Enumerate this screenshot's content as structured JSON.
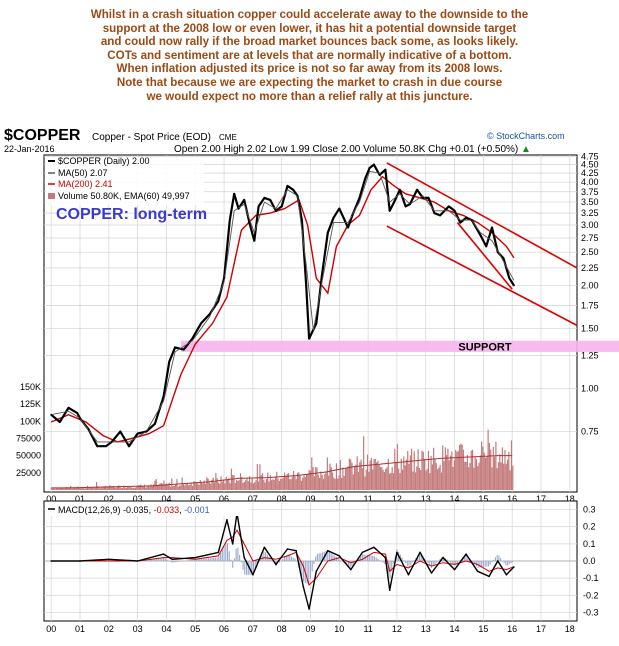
{
  "commentary": [
    "Whilst in a crash situation copper could accelerate away to the downside to the",
    "support at the 2008 low or even lower, it has hit a potential downside target",
    "and could now rally if the broad market bounces back some, as looks likely.",
    "COTs and sentiment are at levels that are normally indicative of a bottom.",
    "When inflation adjusted its price is not so far away from its 2008 lows.",
    "Note that because we are expecting the market to crash in due course",
    "we would expect no more than a relief rally at this juncture."
  ],
  "colors": {
    "commentary": "#9b4a14",
    "price": "#000000",
    "ma50": "#000000",
    "ma200": "#cc0000",
    "volume": "#c47a7a",
    "trend_channel": "#dd0000",
    "support_band": "#f7b4ee",
    "overlay_title": "#3a3acc",
    "stockcharts": "#1a4d99"
  },
  "chart_data": [
    {
      "type": "line",
      "header": {
        "symbol": "$COPPER",
        "description": "Copper - Spot Price (EOD)",
        "exchange": "CME",
        "date": "22-Jan-2016",
        "open_label": "Open",
        "open": "2.00",
        "high_label": "High",
        "high": "2.02",
        "low_label": "Low",
        "low": "1.99",
        "close_label": "Close",
        "close": "2.00",
        "volume_label": "Volume",
        "volume": "50.8K",
        "chg_label": "Chg",
        "chg": "+0.01 (+0.50%)",
        "watermark": "© StockCharts.com",
        "up_arrow": "▲"
      },
      "legend": [
        "$COPPER (Daily) 2.00",
        "MA(50) 2.07",
        "MA(200) 2.41",
        "Volume 50.80K, EMA(60) 49,997"
      ],
      "overlay_title": "COPPER: long-term",
      "support_label": "SUPPORT",
      "support_range": [
        1.28,
        1.38
      ],
      "y_scale": "log",
      "ylim": [
        0.5,
        4.8
      ],
      "y_ticks": [
        4.75,
        4.5,
        4.25,
        4.0,
        3.75,
        3.5,
        3.25,
        3.0,
        2.75,
        2.5,
        2.25,
        2.0,
        1.75,
        1.5,
        1.25,
        1.0,
        0.75
      ],
      "y_tick_labels": [
        "4.75",
        "4.50",
        "4.25",
        "4.00",
        "3.75",
        "3.50",
        "3.25",
        "3.00",
        "2.75",
        "2.50",
        "2.25",
        "2.00",
        "1.75",
        "1.50",
        "1.25",
        "1.00",
        "0.75"
      ],
      "xlim": [
        1999.75,
        2018.25
      ],
      "x_ticks": [
        2000,
        2001,
        2002,
        2003,
        2004,
        2005,
        2006,
        2007,
        2008,
        2009,
        2010,
        2011,
        2012,
        2013,
        2014,
        2015,
        2016,
        2017,
        2018
      ],
      "x_tick_labels": [
        "00",
        "01",
        "02",
        "03",
        "04",
        "05",
        "06",
        "07",
        "08",
        "09",
        "10",
        "11",
        "12",
        "13",
        "14",
        "15",
        "16",
        "17",
        "18"
      ],
      "price_series": {
        "name": "$COPPER (Daily)",
        "x": [
          2000.0,
          2000.3,
          2000.6,
          2000.9,
          2001.0,
          2001.3,
          2001.6,
          2001.9,
          2002.1,
          2002.4,
          2002.7,
          2003.0,
          2003.3,
          2003.6,
          2003.9,
          2004.1,
          2004.3,
          2004.6,
          2004.9,
          2005.2,
          2005.5,
          2005.8,
          2006.0,
          2006.2,
          2006.35,
          2006.5,
          2006.7,
          2006.9,
          2007.05,
          2007.2,
          2007.4,
          2007.6,
          2007.8,
          2008.0,
          2008.2,
          2008.4,
          2008.55,
          2008.7,
          2008.85,
          2008.95,
          2009.2,
          2009.4,
          2009.6,
          2009.8,
          2010.0,
          2010.3,
          2010.45,
          2010.7,
          2010.9,
          2011.05,
          2011.2,
          2011.4,
          2011.6,
          2011.75,
          2011.9,
          2012.1,
          2012.3,
          2012.45,
          2012.7,
          2012.9,
          2013.1,
          2013.3,
          2013.5,
          2013.8,
          2014.0,
          2014.2,
          2014.4,
          2014.6,
          2014.9,
          2015.1,
          2015.3,
          2015.5,
          2015.7,
          2015.9,
          2016.06
        ],
        "values": [
          0.84,
          0.8,
          0.88,
          0.85,
          0.82,
          0.76,
          0.68,
          0.68,
          0.7,
          0.75,
          0.68,
          0.74,
          0.75,
          0.79,
          0.95,
          1.2,
          1.32,
          1.3,
          1.4,
          1.55,
          1.65,
          1.8,
          2.1,
          3.1,
          3.7,
          3.35,
          3.55,
          3.0,
          2.7,
          3.4,
          3.6,
          3.55,
          3.3,
          3.4,
          3.9,
          3.8,
          3.65,
          3.1,
          2.0,
          1.4,
          1.55,
          2.15,
          2.85,
          3.15,
          3.35,
          2.95,
          3.2,
          3.6,
          4.1,
          4.4,
          4.5,
          4.2,
          4.35,
          3.3,
          3.5,
          3.8,
          3.4,
          3.45,
          3.8,
          3.6,
          3.6,
          3.25,
          3.2,
          3.4,
          3.3,
          3.05,
          3.15,
          3.1,
          2.8,
          2.6,
          2.95,
          2.5,
          2.4,
          2.1,
          2.0
        ]
      },
      "ma50_series": {
        "name": "MA(50)",
        "x": [
          2000.0,
          2000.6,
          2001.0,
          2001.6,
          2002.1,
          2002.7,
          2003.3,
          2003.9,
          2004.3,
          2004.9,
          2005.5,
          2006.0,
          2006.35,
          2006.7,
          2007.05,
          2007.4,
          2007.8,
          2008.2,
          2008.55,
          2008.85,
          2009.1,
          2009.4,
          2009.8,
          2010.3,
          2010.7,
          2011.05,
          2011.4,
          2011.75,
          2012.1,
          2012.45,
          2012.9,
          2013.3,
          2013.8,
          2014.2,
          2014.6,
          2014.9,
          2015.3,
          2015.7,
          2016.06
        ],
        "values": [
          0.84,
          0.86,
          0.82,
          0.7,
          0.7,
          0.7,
          0.75,
          0.92,
          1.28,
          1.38,
          1.62,
          2.05,
          3.3,
          3.45,
          2.85,
          3.5,
          3.35,
          3.8,
          3.65,
          2.3,
          1.48,
          2.05,
          3.05,
          3.05,
          3.5,
          4.3,
          4.25,
          3.5,
          3.7,
          3.45,
          3.65,
          3.3,
          3.3,
          3.1,
          3.1,
          2.85,
          2.7,
          2.35,
          2.07
        ]
      },
      "ma200_series": {
        "name": "MA(200)",
        "x": [
          2000.0,
          2000.6,
          2001.2,
          2001.8,
          2002.3,
          2002.9,
          2003.4,
          2003.9,
          2004.5,
          2005.0,
          2005.6,
          2006.1,
          2006.6,
          2007.1,
          2007.6,
          2008.1,
          2008.6,
          2008.9,
          2009.2,
          2009.6,
          2009.9,
          2010.3,
          2010.7,
          2011.1,
          2011.5,
          2011.9,
          2012.3,
          2012.8,
          2013.3,
          2013.8,
          2014.3,
          2014.8,
          2015.3,
          2015.8,
          2016.06
        ],
        "values": [
          0.8,
          0.84,
          0.8,
          0.73,
          0.7,
          0.72,
          0.74,
          0.78,
          1.1,
          1.35,
          1.55,
          1.85,
          2.9,
          3.2,
          3.25,
          3.35,
          3.55,
          3.0,
          2.1,
          1.9,
          2.6,
          3.0,
          3.2,
          3.8,
          4.15,
          3.9,
          3.7,
          3.6,
          3.5,
          3.3,
          3.2,
          3.05,
          2.85,
          2.6,
          2.41
        ]
      },
      "trend_channel": [
        {
          "name": "upper-channel-line",
          "x": [
            2011.65,
            2018.25
          ],
          "values": [
            4.55,
            2.25
          ]
        },
        {
          "name": "lower-channel-line",
          "x": [
            2011.65,
            2018.25
          ],
          "values": [
            2.98,
            1.53
          ]
        },
        {
          "name": "inner-wedge-line",
          "x": [
            2014.1,
            2016.0
          ],
          "values": [
            3.05,
            1.95
          ]
        }
      ]
    },
    {
      "type": "bar",
      "name": "Volume",
      "ylim": [
        0,
        160000
      ],
      "y_ticks": [
        150000,
        125000,
        100000,
        75000,
        50000,
        25000
      ],
      "y_tick_labels": [
        "150K",
        "125K",
        "100K",
        "75000",
        "50000",
        "25000"
      ],
      "x": [
        2000.5,
        2001.5,
        2002.5,
        2003.5,
        2004.5,
        2005.5,
        2006.5,
        2007.5,
        2008.5,
        2009.5,
        2010.5,
        2011.5,
        2012.5,
        2013.5,
        2014.5,
        2015.5
      ],
      "avg_values": [
        3000,
        4000,
        5000,
        6000,
        9000,
        12000,
        17000,
        18000,
        21000,
        26000,
        34000,
        38000,
        42000,
        46000,
        48000,
        50000
      ],
      "peak_values": [
        9000,
        12000,
        14000,
        16000,
        24000,
        30000,
        38000,
        42000,
        48000,
        58000,
        78000,
        85000,
        95000,
        100000,
        105000,
        100000
      ]
    },
    {
      "type": "line",
      "name": "MACD(12,26,9)",
      "legend_label": "MACD(12,26,9)",
      "legend_values": [
        "-0.035",
        "-0.033",
        "-0.001"
      ],
      "ylim": [
        -0.35,
        0.35
      ],
      "y_ticks": [
        0.3,
        0.2,
        0.1,
        0.0,
        -0.1,
        -0.2,
        -0.3
      ],
      "y_tick_labels": [
        "0.3",
        "0.2",
        "0.1",
        "0.0",
        "-0.1",
        "-0.2",
        "-0.3"
      ],
      "x": [
        2000.0,
        2001.0,
        2002.0,
        2003.0,
        2003.9,
        2004.2,
        2005.0,
        2005.8,
        2006.1,
        2006.3,
        2006.45,
        2006.7,
        2007.0,
        2007.4,
        2007.8,
        2008.2,
        2008.5,
        2008.75,
        2008.95,
        2009.2,
        2009.6,
        2010.0,
        2010.4,
        2010.8,
        2011.2,
        2011.6,
        2011.75,
        2012.0,
        2012.4,
        2012.8,
        2013.2,
        2013.6,
        2014.0,
        2014.4,
        2014.8,
        2015.2,
        2015.5,
        2015.8,
        2016.06
      ],
      "values": [
        0.0,
        0.0,
        0.01,
        0.0,
        0.04,
        0.01,
        0.02,
        0.05,
        0.24,
        0.1,
        0.28,
        0.02,
        -0.08,
        0.08,
        -0.02,
        0.07,
        0.06,
        -0.15,
        -0.28,
        -0.06,
        0.06,
        0.03,
        -0.05,
        0.05,
        0.08,
        0.02,
        -0.17,
        0.05,
        -0.08,
        0.05,
        -0.07,
        0.02,
        -0.05,
        0.04,
        -0.06,
        -0.09,
        0.0,
        -0.08,
        -0.035
      ],
      "signal_values": [
        0.0,
        0.0,
        0.0,
        0.0,
        0.02,
        0.02,
        0.01,
        0.03,
        0.12,
        0.14,
        0.18,
        0.1,
        0.0,
        0.02,
        0.01,
        0.03,
        0.05,
        -0.03,
        -0.14,
        -0.1,
        0.0,
        0.02,
        -0.01,
        0.01,
        0.05,
        0.04,
        -0.06,
        -0.02,
        -0.04,
        0.0,
        -0.03,
        -0.01,
        -0.02,
        0.0,
        -0.02,
        -0.06,
        -0.04,
        -0.05,
        -0.033
      ]
    }
  ]
}
